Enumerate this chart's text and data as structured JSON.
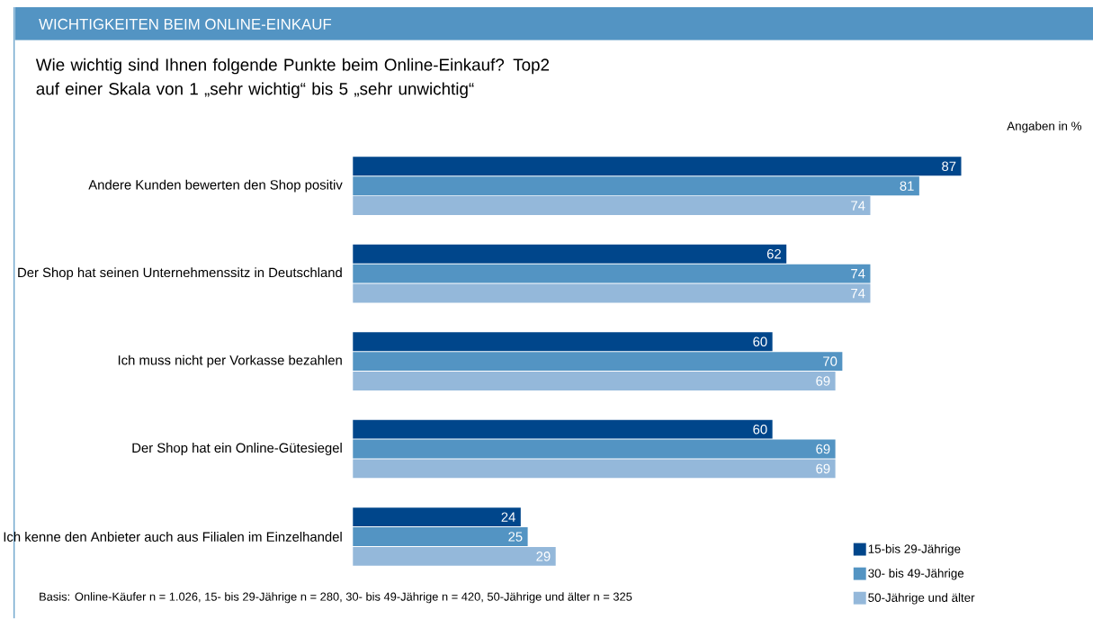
{
  "chart_data": {
    "type": "bar",
    "orientation": "horizontal",
    "title": "WICHTIGKEITEN BEIM ONLINE-EINKAUF",
    "subtitle": "Wie wichtig sind Ihnen folgende Punkte beim Online-Einkauf? Top2 auf einer Skala von 1 „sehr wichtig“ bis 5 „sehr unwichtig“",
    "categories": [
      "Andere Kunden bewerten den Shop positiv",
      "Der Shop hat seinen Unternehmenssitz in Deutschland",
      "Ich muss nicht per Vorkasse bezahlen",
      "Der Shop hat ein Online-Gütesiegel",
      "Ich kenne den Anbieter auch aus Filialen im Einzelhandel"
    ],
    "series": [
      {
        "name": "15-bis 29-Jährige",
        "color": "#00468b",
        "values": [
          87,
          62,
          60,
          60,
          24
        ]
      },
      {
        "name": "30- bis 49-Jährige",
        "color": "#5394c3",
        "values": [
          81,
          74,
          70,
          69,
          25
        ]
      },
      {
        "name": "50-Jährige und älter",
        "color": "#94b8da",
        "values": [
          74,
          74,
          69,
          69,
          29
        ]
      }
    ],
    "data_labels": true,
    "legend": "bottom right",
    "annotations": [
      "Angaben in %",
      "Basis: Online-Käufer n = 1.026, 15- bis 29-Jährige n = 280, 30- bis 49-Jährige n = 420, 50-Jährige und älter n = 325"
    ]
  }
}
